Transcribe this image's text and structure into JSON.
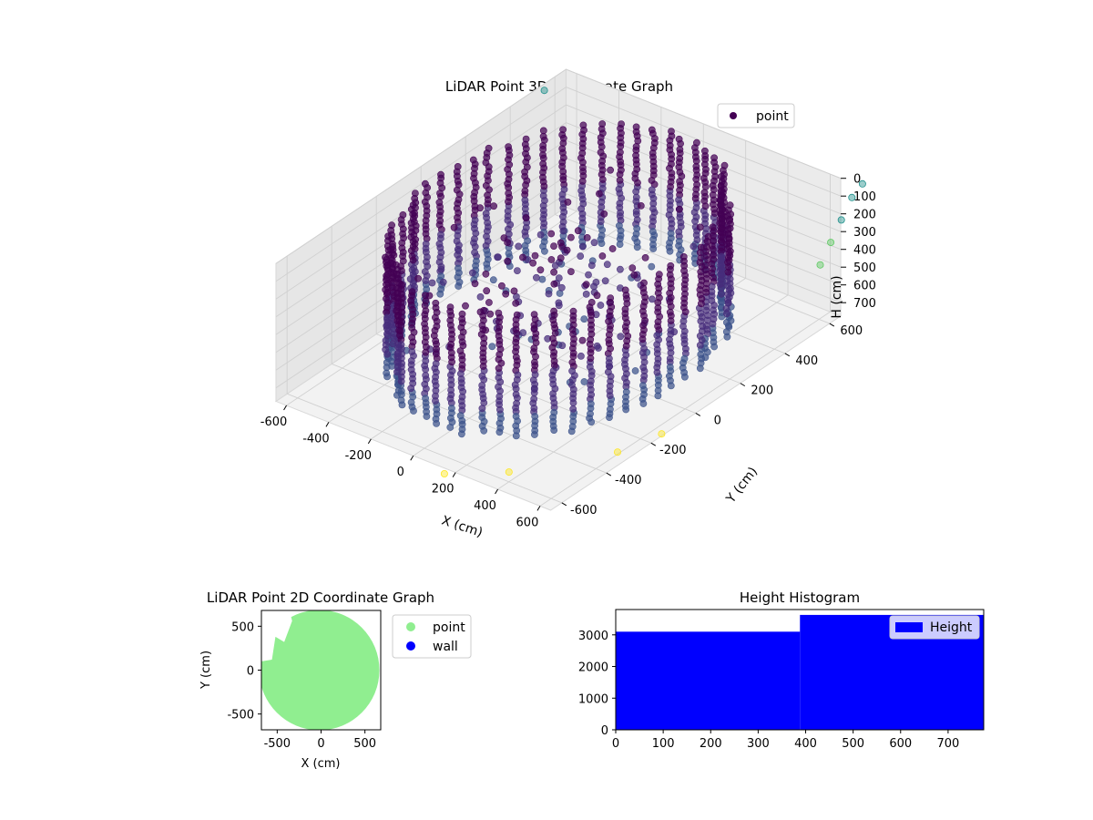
{
  "chart_data": [
    {
      "type": "scatter",
      "projection": "3d",
      "title": "LiDAR Point 3D Coordinate Graph",
      "xlabel": "X (cm)",
      "ylabel": "Y (cm)",
      "zlabel": "H (cm)",
      "xlim": [
        -650,
        650
      ],
      "ylim": [
        -650,
        650
      ],
      "zlim": [
        775,
        0
      ],
      "xticks": [
        "-600",
        "-400",
        "-200",
        "0",
        "200",
        "400",
        "600"
      ],
      "yticks": [
        "-600",
        "-400",
        "-200",
        "0",
        "200",
        "400",
        "600"
      ],
      "zticks": [
        "0",
        "100",
        "200",
        "300",
        "400",
        "500",
        "600",
        "700"
      ],
      "legend": {
        "entries": [
          "point"
        ],
        "placement": "upper-right"
      },
      "colormap": "viridis",
      "colors": {
        "dark": "#440154",
        "mid": "#3b528b",
        "teal": "#21918c",
        "light": "#5ec962",
        "yellow": "#fde725"
      },
      "series": [
        {
          "name": "point",
          "description_shape": "ring of vertical point columns, radius about 550 cm, heights 0-700 cm",
          "ring_radius": 550,
          "column_count": 56,
          "column_height_range": [
            0,
            700
          ],
          "interior_points": [
            {
              "x": -300,
              "y": -100,
              "z": 350
            },
            {
              "x": -250,
              "y": 100,
              "z": 420
            },
            {
              "x": -100,
              "y": 300,
              "z": 260
            },
            {
              "x": 50,
              "y": 150,
              "z": 300
            },
            {
              "x": 150,
              "y": 400,
              "z": 200
            },
            {
              "x": -400,
              "y": 200,
              "z": 500
            },
            {
              "x": -200,
              "y": -300,
              "z": 550
            },
            {
              "x": 0,
              "y": -200,
              "z": 450
            },
            {
              "x": 200,
              "y": 0,
              "z": 380
            },
            {
              "x": -350,
              "y": -350,
              "z": 600
            }
          ],
          "outlier_points": [
            {
              "x": 700,
              "y": 700,
              "z": 50
            },
            {
              "x": 650,
              "y": 700,
              "z": 150
            },
            {
              "x": 600,
              "y": 700,
              "z": 300
            },
            {
              "x": 550,
              "y": 700,
              "z": 450
            },
            {
              "x": 500,
              "y": 700,
              "z": 600
            },
            {
              "x": 700,
              "y": -200,
              "z": 700
            },
            {
              "x": 650,
              "y": -350,
              "z": 700
            },
            {
              "x": 400,
              "y": -600,
              "z": 720
            },
            {
              "x": 200,
              "y": -700,
              "z": 740
            },
            {
              "x": -700,
              "y": 600,
              "z": 100
            }
          ]
        }
      ]
    },
    {
      "type": "scatter",
      "title": "LiDAR Point 2D Coordinate Graph",
      "xlabel": "X (cm)",
      "ylabel": "Y (cm)",
      "xlim": [
        -680,
        680
      ],
      "ylim": [
        -680,
        680
      ],
      "xticks": [
        "-500",
        "0",
        "500"
      ],
      "yticks": [
        "500",
        "0",
        "-500"
      ],
      "legend": {
        "entries": [
          "point",
          "wall"
        ],
        "placement": "outside right"
      },
      "colors": {
        "point": "#90ee90",
        "wall": "#0000ff"
      },
      "series": [
        {
          "name": "point",
          "region": "dense filled disc of points, radius about 640 cm, notch at upper-left"
        },
        {
          "name": "wall",
          "values": []
        }
      ]
    },
    {
      "type": "bar",
      "subtype": "histogram",
      "title": "Height Histogram",
      "xlim": [
        0,
        775
      ],
      "ylim": [
        0,
        3800
      ],
      "xticks": [
        "0",
        "100",
        "200",
        "300",
        "400",
        "500",
        "600",
        "700"
      ],
      "yticks": [
        "0",
        "1000",
        "2000",
        "3000"
      ],
      "legend": {
        "entries": [
          "Height"
        ],
        "placement": "upper-right"
      },
      "colors": {
        "bar": "#0000ff"
      },
      "series": [
        {
          "name": "Height",
          "bins": [
            {
              "x0": 0,
              "x1": 388,
              "count": 3100
            },
            {
              "x0": 388,
              "x1": 775,
              "count": 3630
            }
          ]
        }
      ]
    }
  ]
}
